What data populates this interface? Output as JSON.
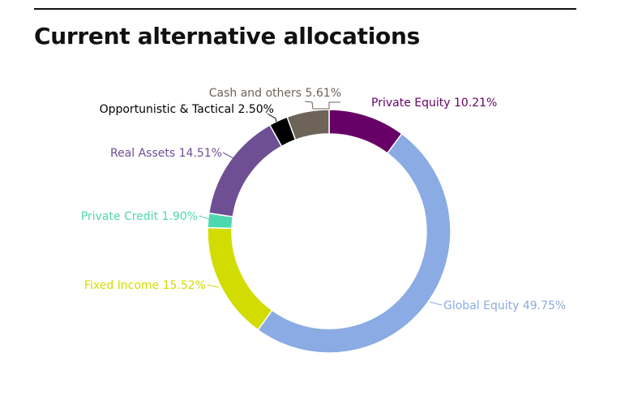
{
  "page": {
    "title": "Current alternative allocations"
  },
  "chart_data": {
    "type": "pie",
    "donut": true,
    "title": "Current alternative allocations",
    "legend": "none",
    "slices": [
      {
        "name": "Private Equity",
        "value": 10.21,
        "label": "Private Equity 10.21%",
        "color": "#660066"
      },
      {
        "name": "Global Equity",
        "value": 49.75,
        "label": "Global Equity 49.75%",
        "color": "#8AABE3"
      },
      {
        "name": "Fixed Income",
        "value": 15.52,
        "label": "Fixed Income 15.52%",
        "color": "#D2DC00"
      },
      {
        "name": "Private Credit",
        "value": 1.9,
        "label": "Private Credit 1.90%",
        "color": "#4ED8B0"
      },
      {
        "name": "Real Assets",
        "value": 14.51,
        "label": "Real Assets 14.51%",
        "color": "#6E4F94"
      },
      {
        "name": "Opportunistic & Tactical",
        "value": 2.5,
        "label": "Opportunistic & Tactical 2.50%",
        "color": "#000000"
      },
      {
        "name": "Cash and others",
        "value": 5.61,
        "label": "Cash and others 5.61%",
        "color": "#6E6358"
      }
    ]
  }
}
